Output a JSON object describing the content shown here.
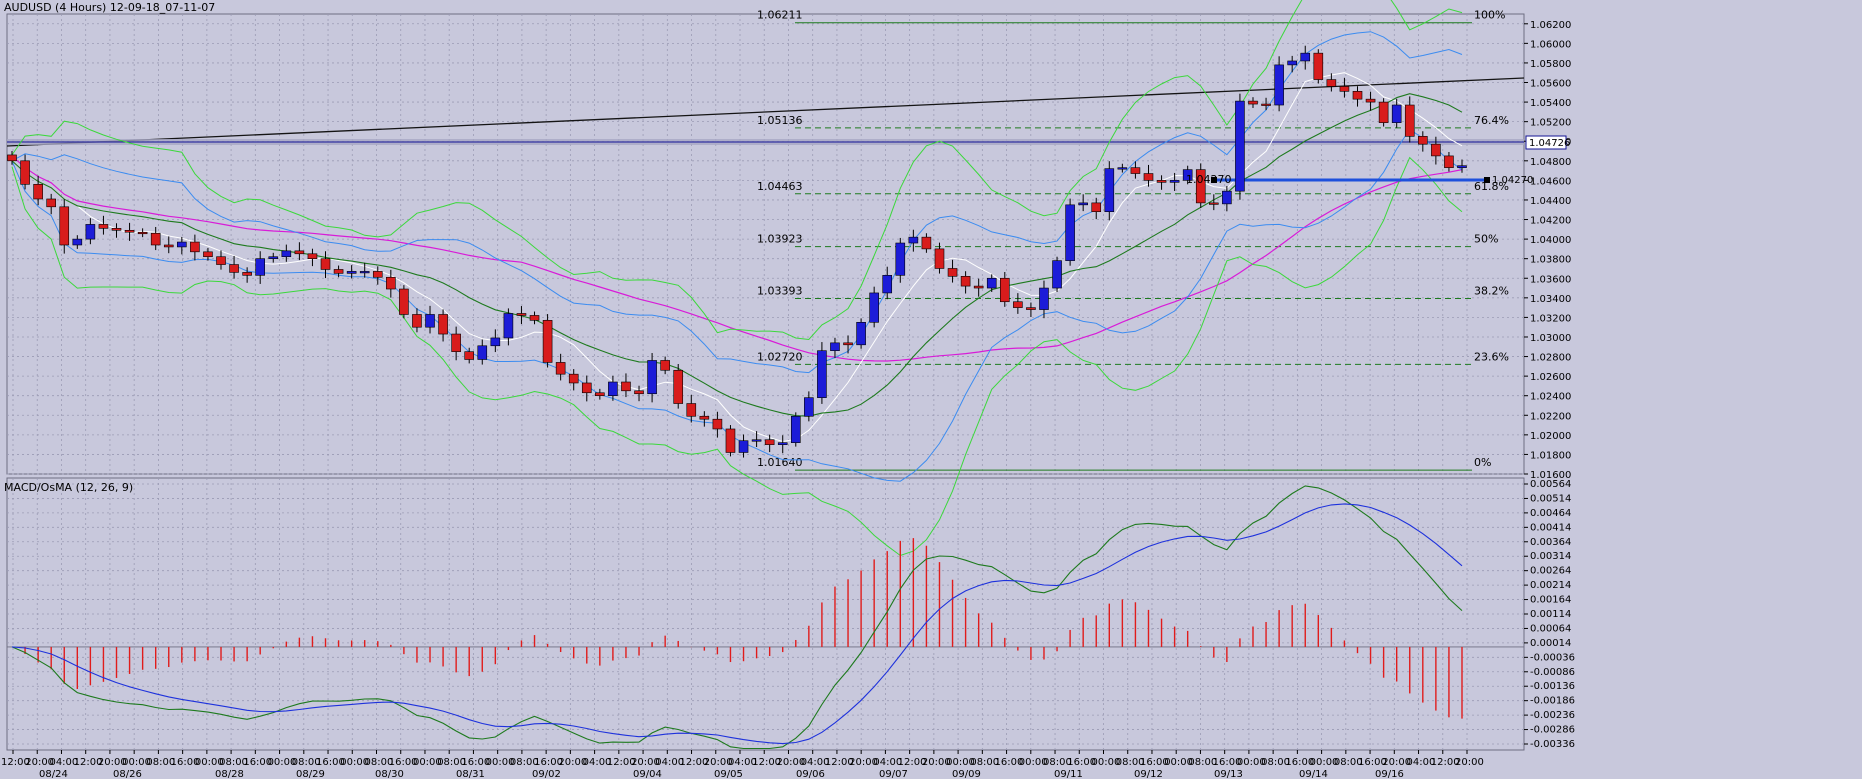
{
  "window_title": "AUDUSD (4 Hours) 12-09-18_07-11-07",
  "indicator_label": "MACD/OsMA (12, 26, 9)",
  "colors": {
    "background": "#c8c8dc",
    "bull_candle": "#1c1cd8",
    "bear_candle": "#d81c1c",
    "bollinger": "#3cd83c",
    "ma_fast": "#ffffff",
    "ma_slow": "#1e7a1e",
    "ma_long": "#d81cd8",
    "envelope": "#3c8cf0",
    "fib": "#1e7a1e",
    "price_line": "#141496",
    "macd_line": "#1e7a1e",
    "signal_line": "#1e32dc",
    "histogram": "#e01c1c"
  },
  "price_axis": {
    "ticks": [
      "1.06200",
      "1.06000",
      "1.05800",
      "1.05600",
      "1.05400",
      "1.05200",
      "1.05000",
      "1.04800",
      "1.04600",
      "1.04400",
      "1.04200",
      "1.04000",
      "1.03800",
      "1.03600",
      "1.03400",
      "1.03200",
      "1.03000",
      "1.02800",
      "1.02600",
      "1.02400",
      "1.02200",
      "1.02000",
      "1.01800",
      "1.01600"
    ],
    "current_price": "1.04726",
    "marker_price": "1.04270"
  },
  "macd_axis": {
    "ticks": [
      "0.00564",
      "0.00514",
      "0.00464",
      "0.00414",
      "0.00364",
      "0.00314",
      "0.00264",
      "0.00214",
      "0.00164",
      "0.00114",
      "0.00064",
      "0.00014",
      "-0.00036",
      "-0.00086",
      "-0.00136",
      "-0.00186",
      "-0.00236",
      "-0.00286",
      "-0.00336"
    ]
  },
  "fib_levels": [
    {
      "pct": "100%",
      "price": "1.06211"
    },
    {
      "pct": "76.4%",
      "price": "1.05136"
    },
    {
      "pct": "61.8%",
      "price": "1.04463"
    },
    {
      "pct": "50%",
      "price": "1.03923"
    },
    {
      "pct": "38.2%",
      "price": "1.03393"
    },
    {
      "pct": "23.6%",
      "price": "1.02720"
    },
    {
      "pct": "0%",
      "price": "1.01640"
    }
  ],
  "marker_label": "1.04270",
  "time_axis": {
    "hours": [
      "12:00",
      "20:00",
      "04:00",
      "12:00",
      "20:00",
      "00:00",
      "08:00",
      "16:00",
      "00:00",
      "08:00",
      "16:00",
      "00:00",
      "08:00",
      "16:00",
      "00:00",
      "08:00",
      "16:00",
      "00:00",
      "08:00",
      "16:00",
      "00:00",
      "08:00",
      "16:00",
      "20:00",
      "04:00",
      "12:00",
      "20:00",
      "04:00",
      "12:00",
      "20:00",
      "04:00",
      "12:00",
      "20:00",
      "04:00",
      "12:00",
      "20:00",
      "04:00",
      "12:00",
      "20:00",
      "00:00",
      "08:00",
      "16:00",
      "00:00",
      "08:00",
      "16:00",
      "00:00",
      "08:00",
      "16:00",
      "00:00",
      "08:00",
      "16:00",
      "00:00",
      "08:00",
      "16:00",
      "00:00",
      "08:00",
      "16:00",
      "20:00",
      "04:00",
      "12:00",
      "20:00"
    ],
    "dates": [
      "08/24",
      "08/26",
      "08/28",
      "08/29",
      "08/30",
      "08/31",
      "09/02",
      "09/04",
      "09/05",
      "09/06",
      "09/07",
      "09/09",
      "09/11",
      "09/12",
      "09/13",
      "09/14",
      "09/16"
    ]
  },
  "chart_data": {
    "type": "candlestick",
    "symbol": "AUDUSD",
    "timeframe": "4 Hours",
    "ylim": [
      1.016,
      1.063
    ],
    "close_series": [
      1.048,
      1.0456,
      1.0441,
      1.0433,
      1.0394,
      1.04,
      1.0415,
      1.0411,
      1.0409,
      1.0407,
      1.0406,
      1.0394,
      1.0392,
      1.0397,
      1.0387,
      1.0382,
      1.0374,
      1.0366,
      1.0363,
      1.038,
      1.0382,
      1.0388,
      1.0385,
      1.038,
      1.0369,
      1.0365,
      1.0367,
      1.0367,
      1.0361,
      1.0349,
      1.0323,
      1.031,
      1.0323,
      1.0303,
      1.0285,
      1.0277,
      1.0291,
      1.0299,
      1.0324,
      1.0322,
      1.0317,
      1.0274,
      1.0262,
      1.0253,
      1.0243,
      1.024,
      1.0254,
      1.0245,
      1.0242,
      1.0276,
      1.0266,
      1.0232,
      1.0219,
      1.0216,
      1.0206,
      1.0182,
      1.0194,
      1.0195,
      1.019,
      1.0192,
      1.0219,
      1.0238,
      1.0286,
      1.0294,
      1.0292,
      1.0315,
      1.0345,
      1.0363,
      1.0396,
      1.0402,
      1.039,
      1.037,
      1.0362,
      1.0352,
      1.035,
      1.036,
      1.0336,
      1.033,
      1.0328,
      1.035,
      1.0378,
      1.0435,
      1.0437,
      1.0428,
      1.0472,
      1.0473,
      1.0467,
      1.046,
      1.0458,
      1.046,
      1.0471,
      1.0437,
      1.0436,
      1.0449,
      1.0541,
      1.0538,
      1.0537,
      1.0578,
      1.0582,
      1.059,
      1.0563,
      1.0556,
      1.0551,
      1.0543,
      1.054,
      1.0519,
      1.0537,
      1.0505,
      1.0497,
      1.0485,
      1.0473,
      1.0475
    ]
  }
}
